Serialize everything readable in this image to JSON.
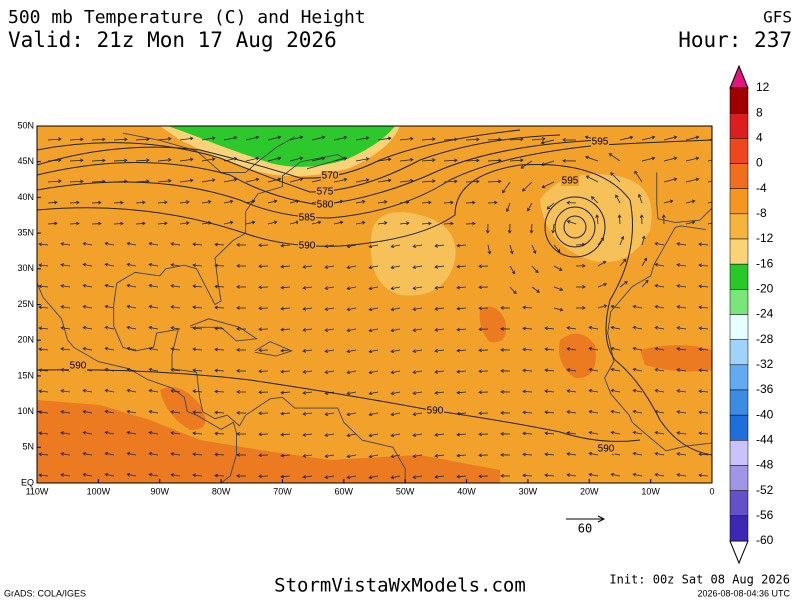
{
  "header": {
    "title": "500 mb Temperature (C) and Height",
    "model": "GFS",
    "valid": "Valid: 21z Mon 17 Aug 2026",
    "hour": "Hour: 237"
  },
  "map": {
    "lat_labels": [
      "50N",
      "45N",
      "40N",
      "35N",
      "30N",
      "25N",
      "20N",
      "15N",
      "10N",
      "5N",
      "EQ"
    ],
    "lon_labels": [
      "110W",
      "100W",
      "90W",
      "80W",
      "70W",
      "60W",
      "50W",
      "40W",
      "30W",
      "20W",
      "10W",
      "0"
    ],
    "contour_labels": [
      570,
      575,
      580,
      585,
      590,
      595,
      595,
      590,
      590,
      590
    ]
  },
  "colorbar": {
    "labels": [
      12,
      8,
      4,
      0,
      -4,
      -8,
      -12,
      -16,
      -20,
      -24,
      -28,
      -32,
      -36,
      -40,
      -44,
      -48,
      -52,
      -56,
      -60
    ],
    "colors": [
      "#a00000",
      "#dc1e1e",
      "#f0461e",
      "#f06e1e",
      "#f5961e",
      "#f5b43c",
      "#fad278",
      "#28c828",
      "#78e678",
      "#e6ffff",
      "#a0d2fa",
      "#64aaf0",
      "#3c8ce6",
      "#1e6edc",
      "#c8c3fa",
      "#a096e6",
      "#6450c8",
      "#3c28b4"
    ],
    "over_color": "#e6147d",
    "under_color": "#1e0096"
  },
  "vector_scale": {
    "label": "60"
  },
  "footer": {
    "grads": "GrADS: COLA/IGES",
    "site": "StormVistaWxModels.com",
    "init": "Init: 00z Sat 08 Aug 2026",
    "timestamp": "2026-08-08-04:36 UTC"
  }
}
